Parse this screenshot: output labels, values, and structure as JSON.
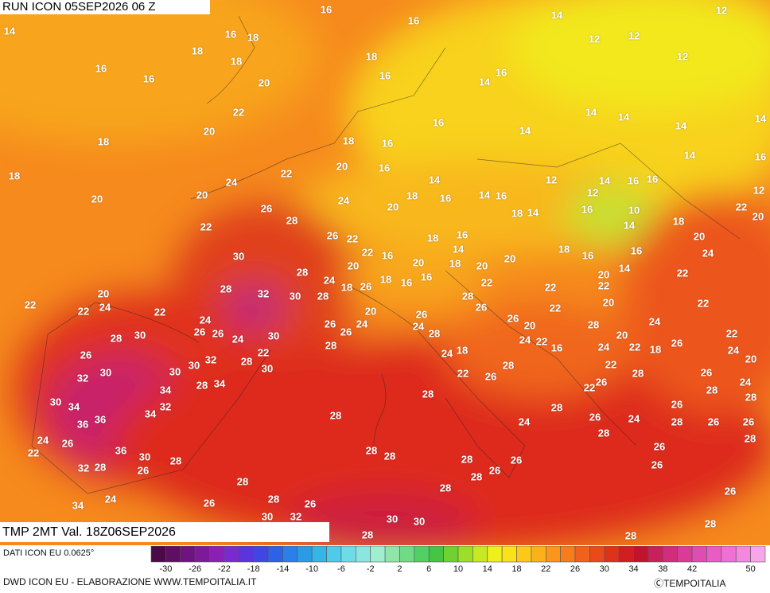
{
  "header": {
    "run": "RUN ICON 05SEP2026 06 Z",
    "field": "TMP 2MT Val. 18Z06SEP2026"
  },
  "footer": {
    "data_source": "DATI ICON EU 0.0625°",
    "credit": "DWD ICON EU - ELABORAZIONE WWW.TEMPOITALIA.IT",
    "copyright": "ⒸTEMPOITALIA"
  },
  "colorbar": {
    "ticks": [
      -30,
      -26,
      -22,
      -18,
      -14,
      -10,
      -6,
      -2,
      2,
      6,
      10,
      14,
      18,
      22,
      26,
      30,
      34,
      38,
      42,
      50
    ],
    "colors": [
      "#4a0a48",
      "#5e0f63",
      "#6e1480",
      "#7d1a9a",
      "#8a20b4",
      "#7a2bd0",
      "#5b34dc",
      "#3f46e2",
      "#2d62e6",
      "#2a7fe8",
      "#2c9be6",
      "#34b6e6",
      "#4ecbe8",
      "#6fdbe6",
      "#8be6e0",
      "#a0eed0",
      "#8fe6a8",
      "#6edc84",
      "#52d064",
      "#46c444",
      "#6ed232",
      "#9cde2a",
      "#c8e822",
      "#eef01c",
      "#fae21a",
      "#fcc81a",
      "#fcb01a",
      "#fa961c",
      "#f67c1c",
      "#f0621c",
      "#e84a1c",
      "#de321c",
      "#d01e22",
      "#c0142e",
      "#c8205a",
      "#d02e7a",
      "#d83c96",
      "#e04cb0",
      "#e85cc4",
      "#ee70d4",
      "#f488e0",
      "#f8a6ea"
    ]
  },
  "map_labels": [
    16,
    14,
    16,
    18,
    18,
    18,
    16,
    16,
    20,
    22,
    20,
    18,
    18,
    20,
    24,
    22,
    20,
    22,
    26,
    28,
    30,
    28,
    32,
    30,
    28,
    28,
    26,
    22,
    24,
    20,
    18,
    22,
    20,
    22,
    24,
    22,
    24,
    26,
    26,
    24,
    30,
    28,
    30,
    26,
    30,
    32,
    22,
    28,
    30,
    32,
    30,
    30,
    28,
    34,
    34,
    32,
    34,
    30,
    34,
    36,
    36,
    24,
    26,
    22,
    36,
    30,
    26,
    32,
    28,
    28,
    34,
    24,
    26,
    28,
    26,
    30,
    32,
    28,
    30,
    30,
    28,
    28,
    28,
    28,
    28,
    22,
    26,
    28,
    24,
    28,
    28,
    28,
    26,
    26,
    28,
    28,
    28,
    26,
    24,
    26,
    26,
    28,
    26,
    28,
    26,
    26,
    26,
    28,
    26,
    28,
    22,
    26,
    28,
    22,
    24,
    22,
    18,
    26,
    20,
    24,
    22,
    24,
    20,
    24,
    28,
    22,
    22,
    24,
    20,
    18,
    22,
    20,
    12,
    16,
    14,
    12,
    12,
    12,
    12,
    14,
    16,
    18,
    16,
    14,
    16,
    16,
    14,
    14,
    14,
    14,
    14,
    16,
    18,
    16,
    16,
    20,
    24,
    20,
    18,
    14,
    16,
    14,
    16,
    12,
    14,
    16,
    12,
    10,
    14,
    16,
    18,
    14,
    18,
    16,
    14,
    16,
    22,
    20,
    18,
    20,
    20,
    18,
    16,
    16,
    14,
    20,
    22,
    22,
    22,
    18,
    16,
    16,
    26,
    20,
    24,
    26,
    26,
    28,
    26,
    28,
    26,
    24,
    28,
    24,
    18,
    22,
    20,
    26,
    20,
    28,
    24,
    22,
    16
  ]
}
